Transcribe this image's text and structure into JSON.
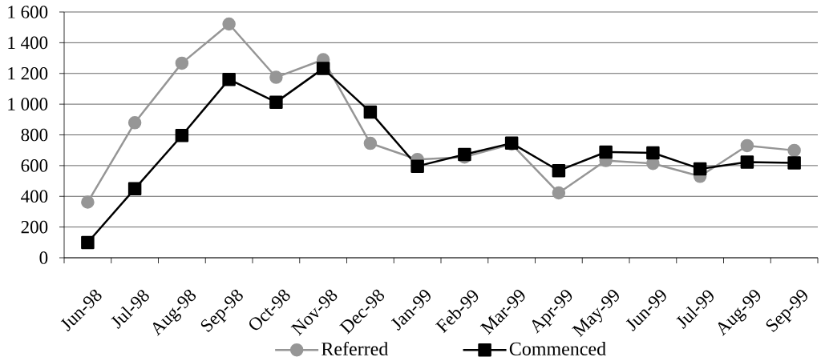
{
  "chart_data": {
    "type": "line",
    "categories": [
      "Jun-98",
      "Jul-98",
      "Aug-98",
      "Sep-98",
      "Oct-98",
      "Nov-98",
      "Dec-98",
      "Jan-99",
      "Feb-99",
      "Mar-99",
      "Apr-99",
      "May-99",
      "Jun-99",
      "Jul-99",
      "Aug-99",
      "Sep-99"
    ],
    "series": [
      {
        "name": "Referred",
        "color": "#969696",
        "marker": "circle",
        "values": [
          362,
          879,
          1267,
          1522,
          1175,
          1290,
          745,
          640,
          656,
          740,
          422,
          633,
          614,
          530,
          730,
          699
        ]
      },
      {
        "name": "Commenced",
        "color": "#000000",
        "marker": "square",
        "values": [
          99,
          449,
          796,
          1161,
          1013,
          1232,
          949,
          596,
          672,
          746,
          567,
          688,
          683,
          579,
          623,
          618
        ]
      }
    ],
    "ylim": [
      0,
      1600
    ],
    "yticks": [
      0,
      200,
      400,
      600,
      800,
      {
        "value": 1000,
        "label": "1 000"
      },
      {
        "value": 1200,
        "label": "1 200"
      },
      {
        "value": 1400,
        "label": "1 400"
      },
      {
        "value": 1600,
        "label": "1 600"
      }
    ],
    "grid": "y",
    "legend": "bottom",
    "line_style": "solid"
  }
}
